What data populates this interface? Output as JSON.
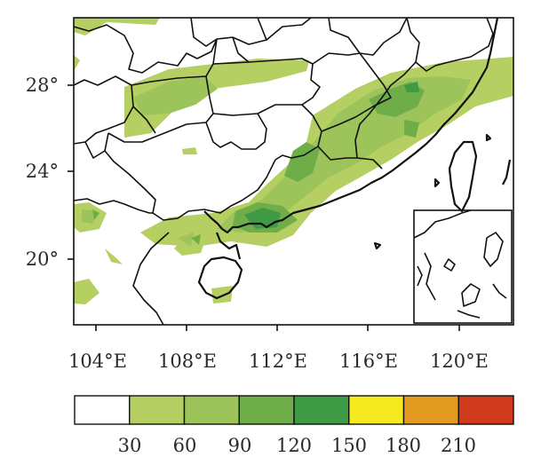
{
  "map": {
    "lat_ticks": [
      "28°",
      "24°",
      "20°"
    ],
    "lon_ticks": [
      "104°E",
      "108°E",
      "112°E",
      "116°E",
      "120°E"
    ]
  },
  "legend": {
    "labels": [
      "30",
      "60",
      "90",
      "120",
      "150",
      "180",
      "210"
    ],
    "colors": [
      "#ffffff",
      "#b5cf63",
      "#9cc45b",
      "#6fad48",
      "#3f9a45",
      "#f5ea1f",
      "#e39b1f",
      "#cf3a1c"
    ]
  }
}
